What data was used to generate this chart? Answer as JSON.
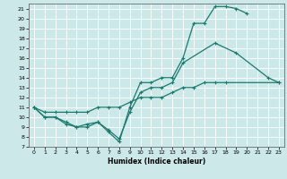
{
  "xlabel": "Humidex (Indice chaleur)",
  "bg_color": "#cce8e8",
  "grid_color": "#ffffff",
  "line_color": "#1a7a6e",
  "xlim": [
    -0.5,
    23.5
  ],
  "ylim": [
    7,
    21.5
  ],
  "yticks": [
    7,
    8,
    9,
    10,
    11,
    12,
    13,
    14,
    15,
    16,
    17,
    18,
    19,
    20,
    21
  ],
  "xticks": [
    0,
    1,
    2,
    3,
    4,
    5,
    6,
    7,
    8,
    9,
    10,
    11,
    12,
    13,
    14,
    15,
    16,
    17,
    18,
    19,
    20,
    21,
    22,
    23
  ],
  "curve1_x": [
    0,
    1,
    2,
    3,
    4,
    5,
    6,
    7,
    8,
    9,
    10,
    11,
    12,
    13,
    14,
    15,
    16,
    17,
    18,
    19,
    20
  ],
  "curve1_y": [
    11,
    10,
    10,
    9.5,
    9,
    9,
    9.5,
    8.5,
    7.5,
    11,
    13.5,
    13.5,
    14,
    14,
    16,
    19.5,
    19.5,
    21.2,
    21.2,
    21,
    20.5
  ],
  "curve2_x": [
    0,
    1,
    2,
    3,
    4,
    5,
    6,
    7,
    8,
    9,
    10,
    11,
    12,
    13,
    14,
    17,
    19,
    22,
    23
  ],
  "curve2_y": [
    11,
    10,
    10,
    9.3,
    9,
    9.3,
    9.5,
    8.7,
    7.8,
    10.5,
    12.5,
    13,
    13,
    13.5,
    15.5,
    17.5,
    16.5,
    14,
    13.5
  ],
  "curve3_x": [
    0,
    1,
    2,
    3,
    4,
    5,
    6,
    7,
    8,
    9,
    10,
    11,
    12,
    13,
    14,
    15,
    16,
    17,
    18,
    23
  ],
  "curve3_y": [
    11,
    10.5,
    10.5,
    10.5,
    10.5,
    10.5,
    11,
    11,
    11,
    11.5,
    12,
    12,
    12,
    12.5,
    13,
    13,
    13.5,
    13.5,
    13.5,
    13.5
  ]
}
